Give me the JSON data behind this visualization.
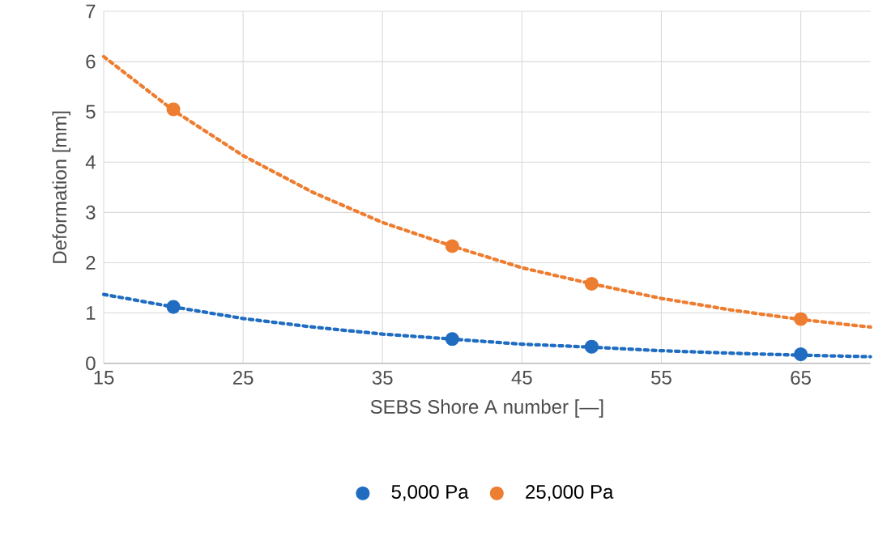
{
  "chart_data": {
    "type": "scatter",
    "xlabel": "SEBS Shore A number [—]",
    "ylabel": "Deformation [mm]",
    "xlim": [
      15,
      70
    ],
    "xticks": [
      15,
      25,
      35,
      45,
      55,
      65
    ],
    "ylim": [
      0,
      7
    ],
    "yticks": [
      0,
      1,
      2,
      3,
      4,
      5,
      6,
      7
    ],
    "grid": true,
    "legend": "bottom",
    "marker": "circle",
    "series": [
      {
        "name": "5,000 Pa",
        "color": "#1f6cc0",
        "x": [
          20,
          40,
          50,
          65
        ],
        "values": [
          1.12,
          0.48,
          0.33,
          0.18
        ]
      },
      {
        "name": "25,000 Pa",
        "color": "#ed7d31",
        "x": [
          20,
          40,
          50,
          65
        ],
        "values": [
          5.05,
          2.33,
          1.58,
          0.88
        ]
      },
      {
        "type": "line",
        "marker": "none",
        "line_style": "dotted",
        "color": "#1f6cc0",
        "x": [
          15,
          20,
          25,
          30,
          35,
          40,
          45,
          50,
          55,
          60,
          65,
          70
        ],
        "values": [
          1.37,
          1.12,
          0.89,
          0.72,
          0.58,
          0.48,
          0.38,
          0.32,
          0.25,
          0.2,
          0.16,
          0.13
        ]
      },
      {
        "type": "line",
        "marker": "none",
        "line_style": "dotted",
        "color": "#ed7d31",
        "x": [
          15,
          20,
          25,
          30,
          35,
          40,
          45,
          50,
          55,
          60,
          65,
          70
        ],
        "values": [
          6.1,
          5.03,
          4.13,
          3.4,
          2.8,
          2.33,
          1.9,
          1.58,
          1.29,
          1.06,
          0.87,
          0.72
        ]
      }
    ]
  }
}
